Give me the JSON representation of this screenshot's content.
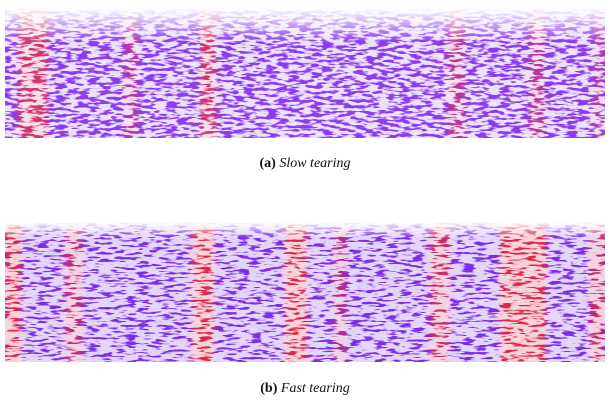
{
  "figures": [
    {
      "label": "(a)",
      "caption": "Slow tearing"
    },
    {
      "label": "(b)",
      "caption": "Fast tearing"
    }
  ]
}
